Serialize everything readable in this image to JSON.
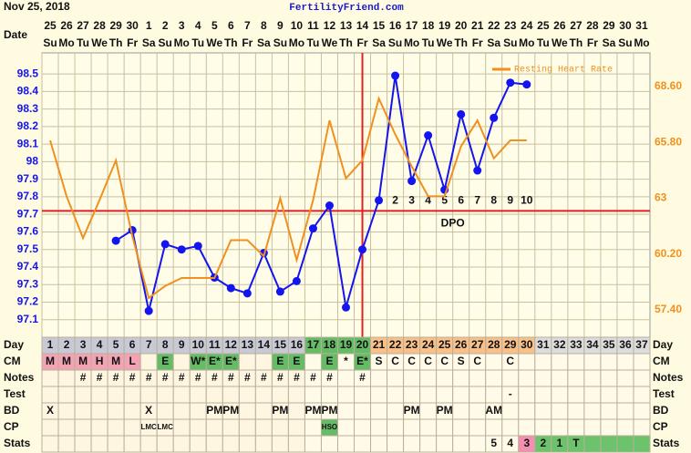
{
  "header": {
    "date": "Nov 25, 2018",
    "site": "FertilityFriend.com"
  },
  "chart_data": {
    "type": "line",
    "x_label": "Date",
    "categories": [
      "25",
      "26",
      "27",
      "28",
      "29",
      "30",
      "1",
      "2",
      "3",
      "4",
      "5",
      "6",
      "7",
      "8",
      "9",
      "10",
      "11",
      "12",
      "13",
      "14",
      "15",
      "16",
      "17",
      "18",
      "19",
      "20",
      "21",
      "22",
      "23",
      "24",
      "25",
      "26",
      "27",
      "28",
      "29",
      "30",
      "31"
    ],
    "weekdays": [
      "Su",
      "Mo",
      "Tu",
      "We",
      "Th",
      "Fr",
      "Sa",
      "Su",
      "Mo",
      "Tu",
      "We",
      "Th",
      "Fr",
      "Sa",
      "Su",
      "Mo",
      "Tu",
      "We",
      "Th",
      "Fr",
      "Sa",
      "Su",
      "Mo",
      "Tu",
      "We",
      "Th",
      "Fr",
      "Sa",
      "Su",
      "Mo",
      "Tu",
      "We",
      "Th",
      "Fr",
      "Sa",
      "Su",
      "Mo"
    ],
    "ylim": [
      97.0,
      98.62
    ],
    "yticks": [
      97.1,
      97.2,
      97.3,
      97.4,
      97.5,
      97.6,
      97.7,
      97.8,
      97.9,
      98.0,
      98.1,
      98.2,
      98.3,
      98.4,
      98.5
    ],
    "y2lim": [
      56.03,
      70.29
    ],
    "y2ticks": [
      {
        "value": 57.4,
        "label": "57.40"
      },
      {
        "value": 60.2,
        "label": "60.20"
      },
      63,
      {
        "value": 65.8,
        "label": "65.80"
      },
      {
        "value": 68.6,
        "label": "68.60"
      }
    ],
    "grid": true,
    "legend": "top-right",
    "series": [
      {
        "color": "#1414f0",
        "values": [
          null,
          null,
          null,
          null,
          97.55,
          97.61,
          97.15,
          97.53,
          97.5,
          97.52,
          97.34,
          97.28,
          97.25,
          97.48,
          97.26,
          97.32,
          97.62,
          97.75,
          97.17,
          97.5,
          97.78,
          98.49,
          97.89,
          98.15,
          97.84,
          98.27,
          97.95,
          98.25,
          98.45,
          98.44,
          null,
          null,
          null,
          null,
          null,
          null,
          null
        ]
      },
      {
        "name": "Resting Heart Rate",
        "color": "#f0901e",
        "axis": "y2",
        "values": [
          65.9,
          63.1,
          61.0,
          62.9,
          64.9,
          61.1,
          58.0,
          58.6,
          59.0,
          59.0,
          59.0,
          60.9,
          60.9,
          60.1,
          63.0,
          59.9,
          62.9,
          66.9,
          64.0,
          64.9,
          68.0,
          66.2,
          64.6,
          63.1,
          63.1,
          65.6,
          66.9,
          65.0,
          65.9,
          65.9,
          null,
          null,
          null,
          null,
          null,
          null,
          null
        ]
      }
    ],
    "coverline": 97.72,
    "ovulation_day": 20,
    "dpo": [
      null,
      null,
      null,
      null,
      null,
      null,
      null,
      null,
      null,
      null,
      null,
      null,
      null,
      null,
      null,
      null,
      null,
      null,
      null,
      null,
      null,
      2,
      3,
      4,
      5,
      6,
      7,
      8,
      9,
      10,
      null,
      null,
      null,
      null,
      null,
      null,
      null
    ],
    "dpo_label": "DPO"
  },
  "table": {
    "rows": [
      {
        "label": "Day",
        "values": [
          1,
          2,
          3,
          4,
          5,
          6,
          7,
          8,
          9,
          10,
          11,
          12,
          13,
          14,
          15,
          16,
          17,
          18,
          19,
          20,
          21,
          22,
          23,
          24,
          25,
          26,
          27,
          28,
          29,
          30,
          31,
          32,
          33,
          34,
          35,
          36,
          37
        ],
        "fills": [
          "#c9c9d6",
          "#c9c9d6",
          "#c9c9d6",
          "#c9c9d6",
          "#c9c9d6",
          "#c9c9d6",
          "#c9c9d6",
          "#c9c9d6",
          "#c9c9d6",
          "#c9c9d6",
          "#c9c9d6",
          "#c9c9d6",
          "#c9c9d6",
          "#c9c9d6",
          "#c9c9d6",
          "#c9c9d6",
          "#66bb66",
          "#66bb66",
          "#66bb66",
          "#66bb66",
          "#f9c08a",
          "#f9c08a",
          "#f9c08a",
          "#f9c08a",
          "#f9c08a",
          "#f9c08a",
          "#f9c08a",
          "#f9c08a",
          "#f9c08a",
          "#f9c08a",
          "#dcdcdc",
          "#dcdcdc",
          "#dcdcdc",
          "#dcdcdc",
          "#dcdcdc",
          "#dcdcdc",
          "#dcdcdc"
        ]
      },
      {
        "label": "CM",
        "values": [
          "M",
          "M",
          "M",
          "H",
          "M",
          "L",
          null,
          "E",
          null,
          "W*",
          "E*",
          "E*",
          null,
          null,
          "E",
          "E",
          null,
          "E",
          "*",
          "E*",
          "S",
          "C",
          "C",
          "C",
          "C",
          "S",
          "C",
          null,
          "C",
          null,
          null,
          null,
          null,
          null,
          null,
          null,
          null
        ],
        "fills": [
          "#f4a3b4",
          "#f4a3b4",
          "#f4a3b4",
          "#f4a3b4",
          "#f4a3b4",
          "#f4a3b4",
          null,
          "#66bb66",
          null,
          "#66bb66",
          "#66bb66",
          "#66bb66",
          null,
          null,
          "#66bb66",
          "#66bb66",
          null,
          "#66bb66",
          null,
          "#66bb66",
          null,
          null,
          null,
          null,
          null,
          null,
          null,
          null,
          null,
          null,
          null,
          null,
          null,
          null,
          null,
          null,
          null
        ]
      },
      {
        "label": "Notes",
        "values": [
          null,
          null,
          "#",
          "#",
          "#",
          "#",
          "#",
          "#",
          "#",
          "#",
          "#",
          "#",
          "#",
          "#",
          "#",
          "#",
          "#",
          "#",
          null,
          "#",
          null,
          null,
          null,
          null,
          null,
          null,
          null,
          null,
          null,
          null,
          null,
          null,
          null,
          null,
          null,
          null,
          null
        ]
      },
      {
        "label": "Test",
        "values": [
          null,
          null,
          null,
          null,
          null,
          null,
          null,
          null,
          null,
          null,
          null,
          null,
          null,
          null,
          null,
          null,
          null,
          null,
          null,
          null,
          null,
          null,
          null,
          null,
          null,
          null,
          null,
          null,
          "-",
          null,
          null,
          null,
          null,
          null,
          null,
          null,
          null
        ]
      },
      {
        "label": "BD",
        "values": [
          "X",
          null,
          null,
          null,
          null,
          null,
          "X",
          null,
          null,
          null,
          "PM",
          "PM",
          null,
          null,
          "PM",
          null,
          "PM",
          "PM",
          null,
          null,
          null,
          null,
          "PM",
          null,
          "PM",
          null,
          null,
          "AM",
          null,
          null,
          null,
          null,
          null,
          null,
          null,
          null,
          null
        ]
      },
      {
        "label": "CP",
        "values": [
          null,
          null,
          null,
          null,
          null,
          null,
          "LMC",
          "LMC",
          null,
          null,
          null,
          null,
          null,
          null,
          null,
          null,
          null,
          "HSO",
          null,
          null,
          null,
          null,
          null,
          null,
          null,
          null,
          null,
          null,
          null,
          null,
          null,
          null,
          null,
          null,
          null,
          null,
          null
        ],
        "fills": [
          null,
          null,
          null,
          null,
          null,
          null,
          null,
          null,
          null,
          null,
          null,
          null,
          null,
          null,
          null,
          null,
          null,
          "#66bb66",
          null,
          null,
          null,
          null,
          null,
          null,
          null,
          null,
          null,
          null,
          null,
          null,
          null,
          null,
          null,
          null,
          null,
          null,
          null
        ]
      },
      {
        "label": "Stats",
        "values": [
          null,
          null,
          null,
          null,
          null,
          null,
          null,
          null,
          null,
          null,
          null,
          null,
          null,
          null,
          null,
          null,
          null,
          null,
          null,
          null,
          null,
          null,
          null,
          null,
          null,
          null,
          null,
          "5",
          "4",
          "3",
          "2",
          "1",
          "T",
          null,
          null,
          null,
          null
        ],
        "fills": [
          null,
          null,
          null,
          null,
          null,
          null,
          null,
          null,
          null,
          null,
          null,
          null,
          null,
          null,
          null,
          null,
          null,
          null,
          null,
          null,
          null,
          null,
          null,
          null,
          null,
          null,
          null,
          null,
          null,
          "#f48fb1",
          "#6cc36c",
          "#6cc36c",
          "#6cc36c",
          "#6cc36c",
          "#6cc36c",
          "#6cc36c",
          "#6cc36c"
        ]
      }
    ]
  }
}
